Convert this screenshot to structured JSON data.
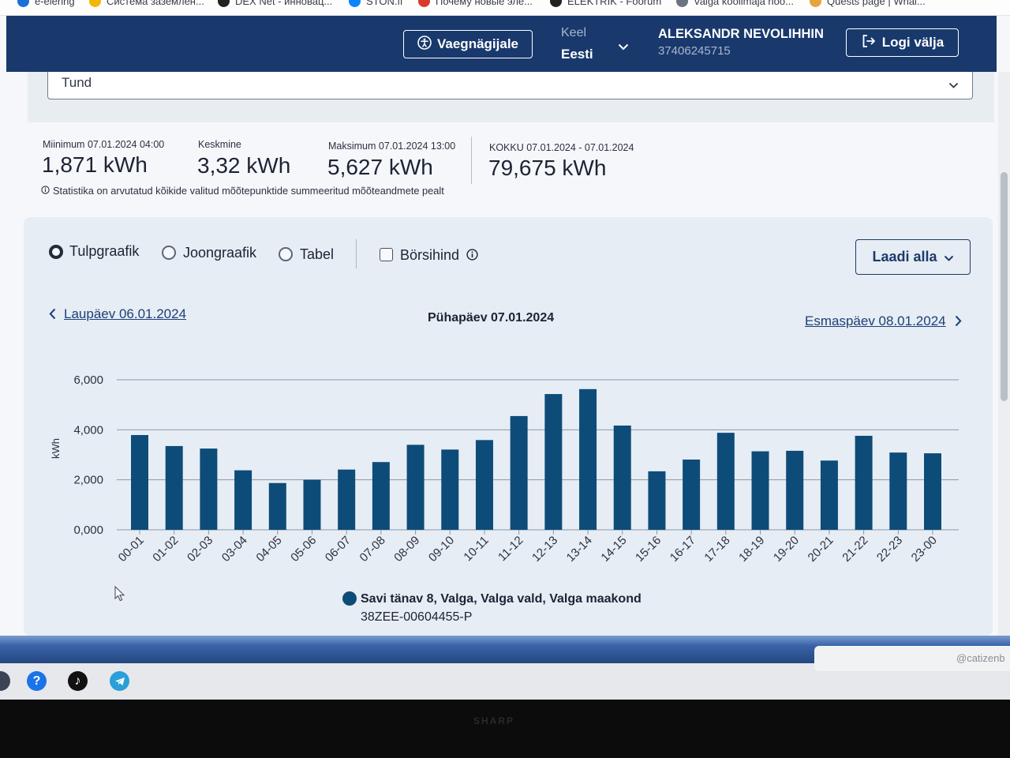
{
  "bookmarks": [
    {
      "label": "e-elering",
      "icon": "elering-logo-icon",
      "color": "#1d6fd8"
    },
    {
      "label": "Система заземлен...",
      "icon": "site-favicon-icon",
      "color": "#f2b705"
    },
    {
      "label": "DEX Net - инновац...",
      "icon": "site-favicon-icon",
      "color": "#222222"
    },
    {
      "label": "STON.fi",
      "icon": "site-favicon-icon",
      "color": "#0a84ff"
    },
    {
      "label": "Почему новые эле...",
      "icon": "site-favicon-icon",
      "color": "#d93a2b"
    },
    {
      "label": "ELEKTRIK - Foorum",
      "icon": "site-favicon-icon",
      "color": "#222222"
    },
    {
      "label": "Valga koolimaja noo...",
      "icon": "site-favicon-icon",
      "color": "#6b7280"
    },
    {
      "label": "Quests page | Whal...",
      "icon": "site-favicon-icon",
      "color": "#e8a33d"
    }
  ],
  "header": {
    "accessibility_button": "Vaegnägijale",
    "language_label": "Keel",
    "language_value": "Eesti",
    "user_name": "ALEKSANDR NEVOLIHHIN",
    "user_code": "37406245715",
    "logout_button": "Logi välja"
  },
  "period_select": {
    "value": "Tund"
  },
  "stats": {
    "min": {
      "label": "Miinimum 07.01.2024 04:00",
      "value": "1,871 kWh"
    },
    "avg": {
      "label": "Keskmine",
      "value": "3,32 kWh"
    },
    "max": {
      "label": "Maksimum 07.01.2024 13:00",
      "value": "5,627 kWh"
    },
    "total": {
      "label": "KOKKU 07.01.2024 - 07.01.2024",
      "value": "79,675 kWh"
    },
    "note": "Statistika on arvutatud kõikide valitud mõõtepunktide summeeritud mõõteandmete pealt"
  },
  "view_options": {
    "options": [
      {
        "label": "Tulpgraafik",
        "selected": true
      },
      {
        "label": "Joongraafik",
        "selected": false
      },
      {
        "label": "Tabel",
        "selected": false
      }
    ],
    "exchange_price": {
      "label": "Börsihind",
      "checked": false
    }
  },
  "download_button": "Laadi alla",
  "date_nav": {
    "prev": "Laupäev 06.01.2024",
    "current": "Pühapäev 07.01.2024",
    "next": "Esmaspäev 08.01.2024"
  },
  "chart_data": {
    "type": "bar",
    "categories": [
      "00-01",
      "01-02",
      "02-03",
      "03-04",
      "04-05",
      "05-06",
      "06-07",
      "07-08",
      "08-09",
      "09-10",
      "10-11",
      "11-12",
      "12-13",
      "13-14",
      "14-15",
      "15-16",
      "16-17",
      "17-18",
      "18-19",
      "19-20",
      "20-21",
      "21-22",
      "22-23",
      "23-00"
    ],
    "series": [
      {
        "name": "Savi tänav 8, Valga, Valga vald, Valga maakond",
        "values": [
          3.79,
          3.35,
          3.25,
          2.38,
          1.871,
          2.0,
          2.41,
          2.71,
          3.4,
          3.21,
          3.59,
          4.55,
          5.43,
          5.627,
          4.17,
          2.34,
          2.81,
          3.88,
          3.14,
          3.16,
          2.77,
          3.76,
          3.09,
          3.06
        ]
      }
    ],
    "ylabel": "kWh",
    "yticks": [
      "0,000",
      "2,000",
      "4,000",
      "6,000"
    ],
    "ylim": [
      0,
      6
    ],
    "grid": true,
    "legend": "bottom"
  },
  "legend": {
    "metering_point": "38ZEE-00604455-P"
  },
  "taskbar": {
    "icons": [
      "help-icon",
      "tiktok-icon",
      "telegram-icon"
    ],
    "tray_text": "@catizenb"
  },
  "monitor_brand": "SHARP",
  "icons": {
    "accessibility": "accessibility-icon",
    "language_dropdown": "chevron-down-icon",
    "logout": "logout-icon",
    "info": "info-icon",
    "prev": "chevron-left-icon",
    "next": "chevron-right-icon"
  },
  "colors": {
    "header_bg": "#19396d",
    "bar": "#0d4c79",
    "link": "#1c3f78",
    "panel_bg": "#e7edf4"
  }
}
